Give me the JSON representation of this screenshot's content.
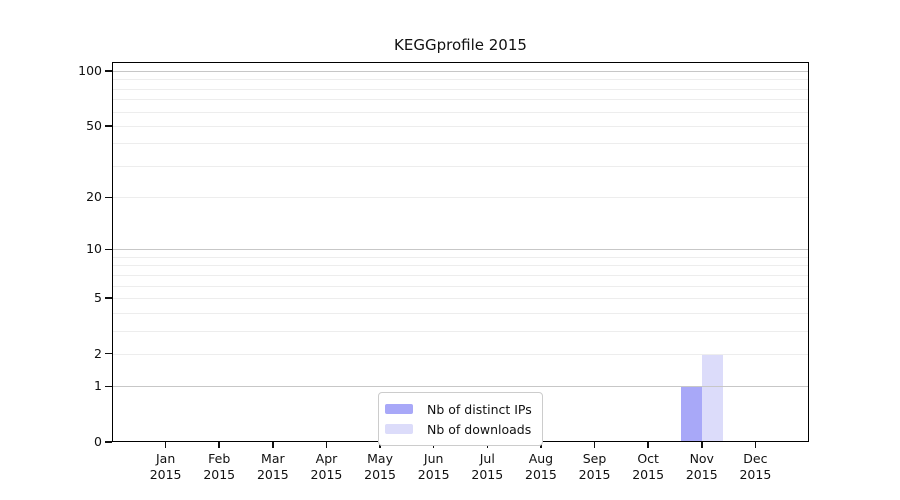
{
  "chart_data": {
    "type": "bar",
    "title": "KEGGprofile 2015",
    "categories": [
      "Jan",
      "Feb",
      "Mar",
      "Apr",
      "May",
      "Jun",
      "Jul",
      "Aug",
      "Sep",
      "Oct",
      "Nov",
      "Dec"
    ],
    "year": "2015",
    "series": [
      {
        "name": "Nb of distinct IPs",
        "color": "#a8a8f8",
        "values": [
          0,
          0,
          0,
          0,
          0,
          0,
          0,
          0,
          0,
          0,
          1,
          0
        ]
      },
      {
        "name": "Nb of downloads",
        "color": "#dcdcfa",
        "values": [
          0,
          0,
          0,
          0,
          0,
          0,
          0,
          0,
          0,
          0,
          2,
          0
        ]
      }
    ],
    "yscale": "log1p",
    "yticks": [
      0,
      1,
      2,
      5,
      10,
      20,
      50,
      100
    ],
    "ylim": [
      0,
      112
    ],
    "grid": {
      "major_values": [
        1,
        10,
        100
      ],
      "minor_values": [
        2,
        3,
        4,
        5,
        6,
        7,
        8,
        9,
        20,
        30,
        40,
        50,
        60,
        70,
        80,
        90
      ]
    },
    "legend": {
      "position": "lower center",
      "entries": [
        "Nb of distinct IPs",
        "Nb of downloads"
      ]
    },
    "colors": {
      "grid_major": "#c7c7c7",
      "grid_minor": "#ededed",
      "axis": "#000000",
      "legend_border": "#cccccc"
    }
  }
}
